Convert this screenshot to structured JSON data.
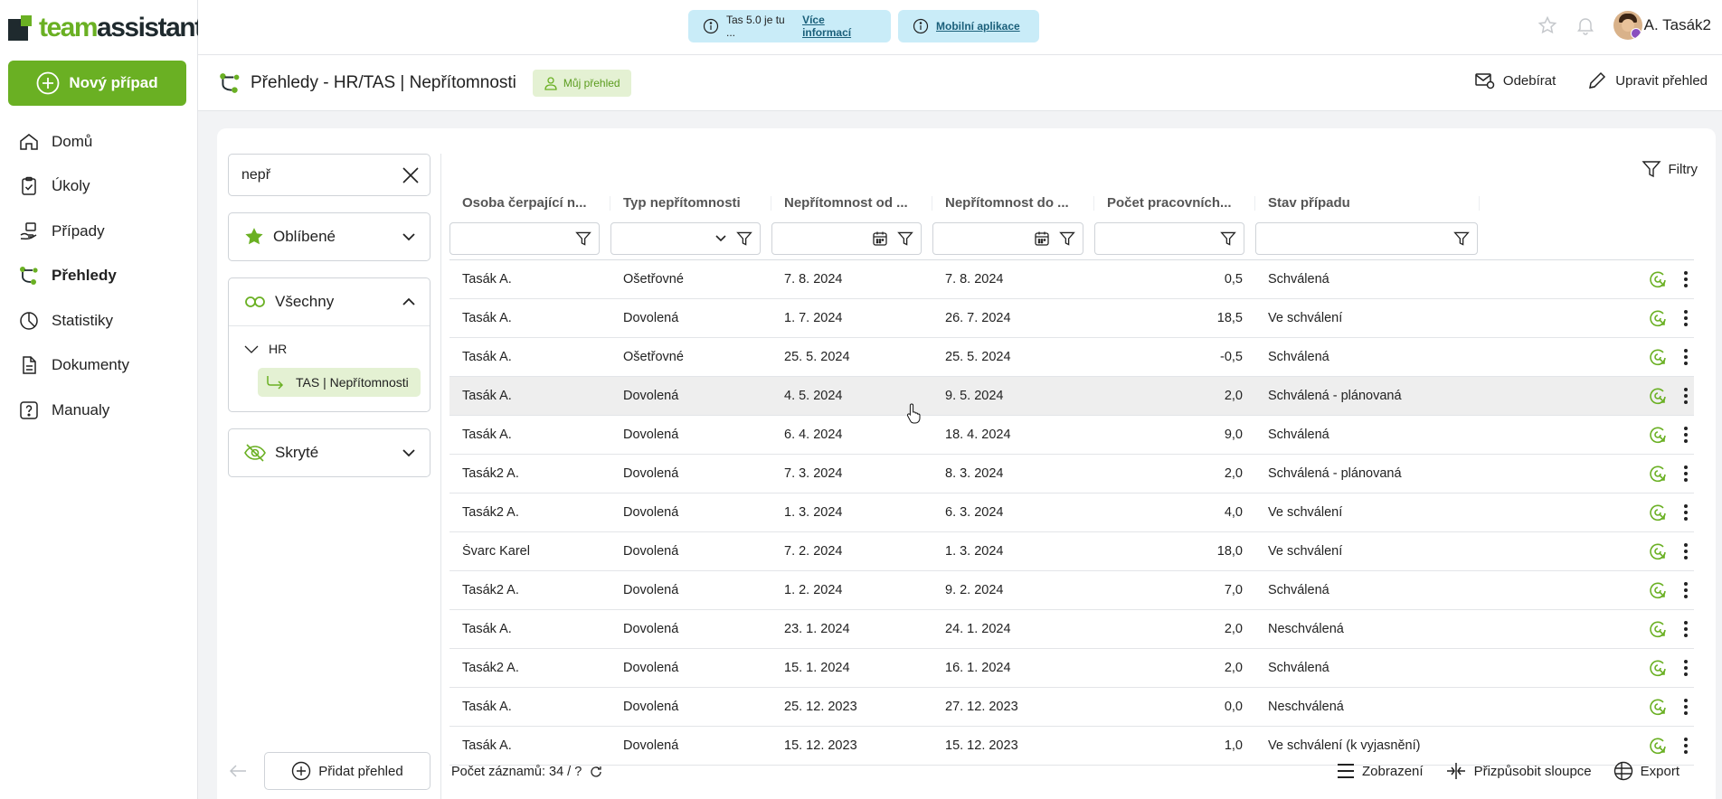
{
  "app": {
    "logo_prefix": "team",
    "logo_suffix": "assistant",
    "new_case_label": "Nový případ"
  },
  "nav": [
    {
      "label": "Domů",
      "icon": "home-icon"
    },
    {
      "label": "Úkoly",
      "icon": "clipboard-check-icon"
    },
    {
      "label": "Případy",
      "icon": "hand-case-icon"
    },
    {
      "label": "Přehledy",
      "icon": "tree-chart-icon",
      "active": true
    },
    {
      "label": "Statistiky",
      "icon": "pie-chart-icon"
    },
    {
      "label": "Dokumenty",
      "icon": "document-icon"
    },
    {
      "label": "Manualy",
      "icon": "help-icon"
    }
  ],
  "topbar": {
    "banner1_text": "Tas 5.0 je tu ...",
    "banner1_link": "Více informací",
    "banner2_link": "Mobilní aplikace",
    "user_name": "A. Tasák2"
  },
  "page": {
    "title": "Přehledy - HR/TAS | Nepřítomnosti",
    "my_view_badge": "Můj přehled",
    "subscribe_label": "Odebírat",
    "edit_label": "Upravit přehled"
  },
  "tree": {
    "search_value": "nepř",
    "favorites_label": "Oblíbené",
    "all_label": "Všechny",
    "hidden_label": "Skryté",
    "folder": "HR",
    "leaf": "TAS | Nepřítomnosti",
    "add_view_label": "Přidat přehled"
  },
  "grid": {
    "filters_label": "Filtry",
    "columns": [
      "Osoba čerpající n...",
      "Typ nepřítomnosti",
      "Nepřítomnost od ...",
      "Nepřítomnost do ...",
      "Počet pracovních...",
      "Stav případu"
    ],
    "rows": [
      {
        "person": "Tasák A.",
        "type": "Ošetřovné",
        "from": "7. 8. 2024",
        "to": "7. 8. 2024",
        "days": "0,5",
        "status": "Schválená"
      },
      {
        "person": "Tasák A.",
        "type": "Dovolená",
        "from": "1. 7. 2024",
        "to": "26. 7. 2024",
        "days": "18,5",
        "status": "Ve schválení"
      },
      {
        "person": "Tasák A.",
        "type": "Ošetřovné",
        "from": "25. 5. 2024",
        "to": "25. 5. 2024",
        "days": "-0,5",
        "status": "Schválená"
      },
      {
        "person": "Tasák A.",
        "type": "Dovolená",
        "from": "4. 5. 2024",
        "to": "9. 5. 2024",
        "days": "2,0",
        "status": "Schválená - plánovaná"
      },
      {
        "person": "Tasák A.",
        "type": "Dovolená",
        "from": "6. 4. 2024",
        "to": "18. 4. 2024",
        "days": "9,0",
        "status": "Schválená"
      },
      {
        "person": "Tasák2 A.",
        "type": "Dovolená",
        "from": "7. 3. 2024",
        "to": "8. 3. 2024",
        "days": "2,0",
        "status": "Schválená - plánovaná"
      },
      {
        "person": "Tasák2 A.",
        "type": "Dovolená",
        "from": "1. 3. 2024",
        "to": "6. 3. 2024",
        "days": "4,0",
        "status": "Ve schválení"
      },
      {
        "person": "Švarc Karel",
        "type": "Dovolená",
        "from": "7. 2. 2024",
        "to": "1. 3. 2024",
        "days": "18,0",
        "status": "Ve schválení"
      },
      {
        "person": "Tasák2 A.",
        "type": "Dovolená",
        "from": "1. 2. 2024",
        "to": "9. 2. 2024",
        "days": "7,0",
        "status": "Schválená"
      },
      {
        "person": "Tasák A.",
        "type": "Dovolená",
        "from": "23. 1. 2024",
        "to": "24. 1. 2024",
        "days": "2,0",
        "status": "Neschválená"
      },
      {
        "person": "Tasák2 A.",
        "type": "Dovolená",
        "from": "15. 1. 2024",
        "to": "16. 1. 2024",
        "days": "2,0",
        "status": "Schválená"
      },
      {
        "person": "Tasák A.",
        "type": "Dovolená",
        "from": "25. 12. 2023",
        "to": "27. 12. 2023",
        "days": "0,0",
        "status": "Neschválená"
      },
      {
        "person": "Tasák A.",
        "type": "Dovolená",
        "from": "15. 12. 2023",
        "to": "15. 12. 2023",
        "days": "1,0",
        "status": "Ve schválení (k vyjasnění)"
      }
    ],
    "record_count": "Počet záznamů: 34 / ?",
    "view_label": "Zobrazení",
    "fit_columns_label": "Přizpůsobit sloupce",
    "export_label": "Export"
  },
  "colors": {
    "brand_green": "#6ab023",
    "banner_blue": "#c9ecf8"
  }
}
